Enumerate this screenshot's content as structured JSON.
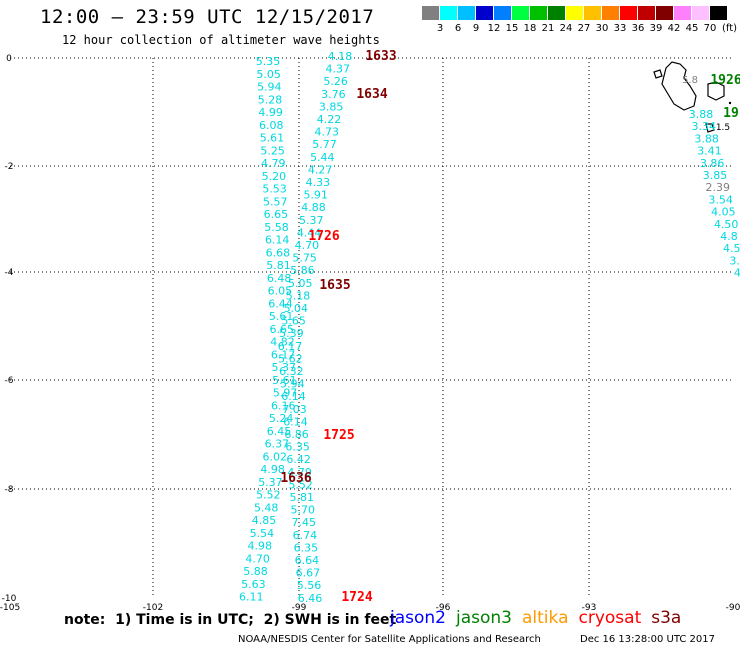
{
  "header": {
    "title": "12:00 – 23:59 UTC 12/15/2017",
    "subtitle": "12 hour collection of altimeter wave heights"
  },
  "colorbar": {
    "unit": "(ft)",
    "labels": [
      "3",
      "6",
      "9",
      "12",
      "15",
      "18",
      "21",
      "24",
      "27",
      "30",
      "33",
      "36",
      "39",
      "42",
      "45",
      "70"
    ],
    "colors": [
      "#808080",
      "#00ffff",
      "#00bfff",
      "#0000cd",
      "#0080ff",
      "#00ff40",
      "#00c000",
      "#008000",
      "#ffff00",
      "#ffc000",
      "#ff8000",
      "#ff0000",
      "#c00000",
      "#800000",
      "#ff80ff",
      "#ffc0ff",
      "#000000"
    ]
  },
  "axes": {
    "x_ticks": [
      "-105",
      "-102",
      "-99",
      "-96",
      "-93",
      "-90"
    ],
    "y_ticks": [
      "0",
      "-2",
      "-4",
      "-6",
      "-8",
      "-10"
    ]
  },
  "passes": [
    {
      "label": "1633",
      "color": "#800000"
    },
    {
      "label": "1634",
      "color": "#800000"
    },
    {
      "label": "1726",
      "color": "#ff0000"
    },
    {
      "label": "1635",
      "color": "#800000"
    },
    {
      "label": "1725",
      "color": "#ff0000"
    },
    {
      "label": "1636",
      "color": "#800000"
    },
    {
      "label": "1724",
      "color": "#ff0000"
    },
    {
      "label": "1926",
      "color": "#008000"
    },
    {
      "label": "19",
      "color": "#008000"
    }
  ],
  "track_colors": {
    "cyan": "#00d8e0",
    "gray": "#808080"
  },
  "tracks": {
    "left": [
      "5.35",
      "5.05",
      "5.94",
      "5.28",
      "4.99",
      "6.08",
      "5.61",
      "5.25",
      "4.79",
      "5.20",
      "5.53",
      "5.57",
      "6.65",
      "5.58",
      "6.14",
      "6.68",
      "5.81",
      "6.48",
      "6.05",
      "6.44",
      "5.61",
      "6.65",
      "4.82",
      "6.17",
      "5.37",
      "5.61",
      "5.97",
      "6.16",
      "5.24",
      "6.45",
      "6.37",
      "6.02",
      "4.98",
      "5.37",
      "5.52",
      "5.48",
      "4.85",
      "5.54",
      "4.98",
      "4.70",
      "5.88",
      "5.63",
      "6.11"
    ],
    "right": [
      "4.18",
      "4.37",
      "5.26",
      "3.76",
      "3.85",
      "4.22",
      "4.73",
      "5.77",
      "5.44",
      "4.27",
      "4.33",
      "5.91",
      "4.88",
      "5.37",
      "4.44",
      "4.70",
      "5.75",
      "5.86",
      "5.05",
      "5.18",
      "5.04",
      "5.65",
      "5.39",
      "6.17",
      "5.62",
      "6.32",
      "5.94",
      "6.14",
      "7.03",
      "6.14",
      "6.86",
      "6.35",
      "6.42",
      "4.79",
      "5.52",
      "5.81",
      "5.70",
      "7.45",
      "6.74",
      "6.35",
      "6.64",
      "6.67",
      "5.56",
      "6.46"
    ],
    "east": [
      "3.88",
      "3.34",
      "3.88",
      "3.41",
      "3.86",
      "3.85",
      "2.39",
      "3.54",
      "4.05",
      "4.50",
      "4.8",
      "4.5",
      "3.",
      "4"
    ],
    "east_misc": [
      "5.8",
      "1.5"
    ]
  },
  "footer": {
    "note": "note:  1) Time is in UTC;  2) SWH is in feet",
    "legend": [
      {
        "name": "jason2",
        "color": "#0000ff"
      },
      {
        "name": "jason3",
        "color": "#008000"
      },
      {
        "name": "altika",
        "color": "#ff9900"
      },
      {
        "name": "cryosat",
        "color": "#ff0000"
      },
      {
        "name": "s3a",
        "color": "#800000"
      }
    ],
    "credit": "NOAA/NESDIS Center for Satellite Applications and Research",
    "stamp": "Dec 16 13:28:00 UTC 2017"
  }
}
